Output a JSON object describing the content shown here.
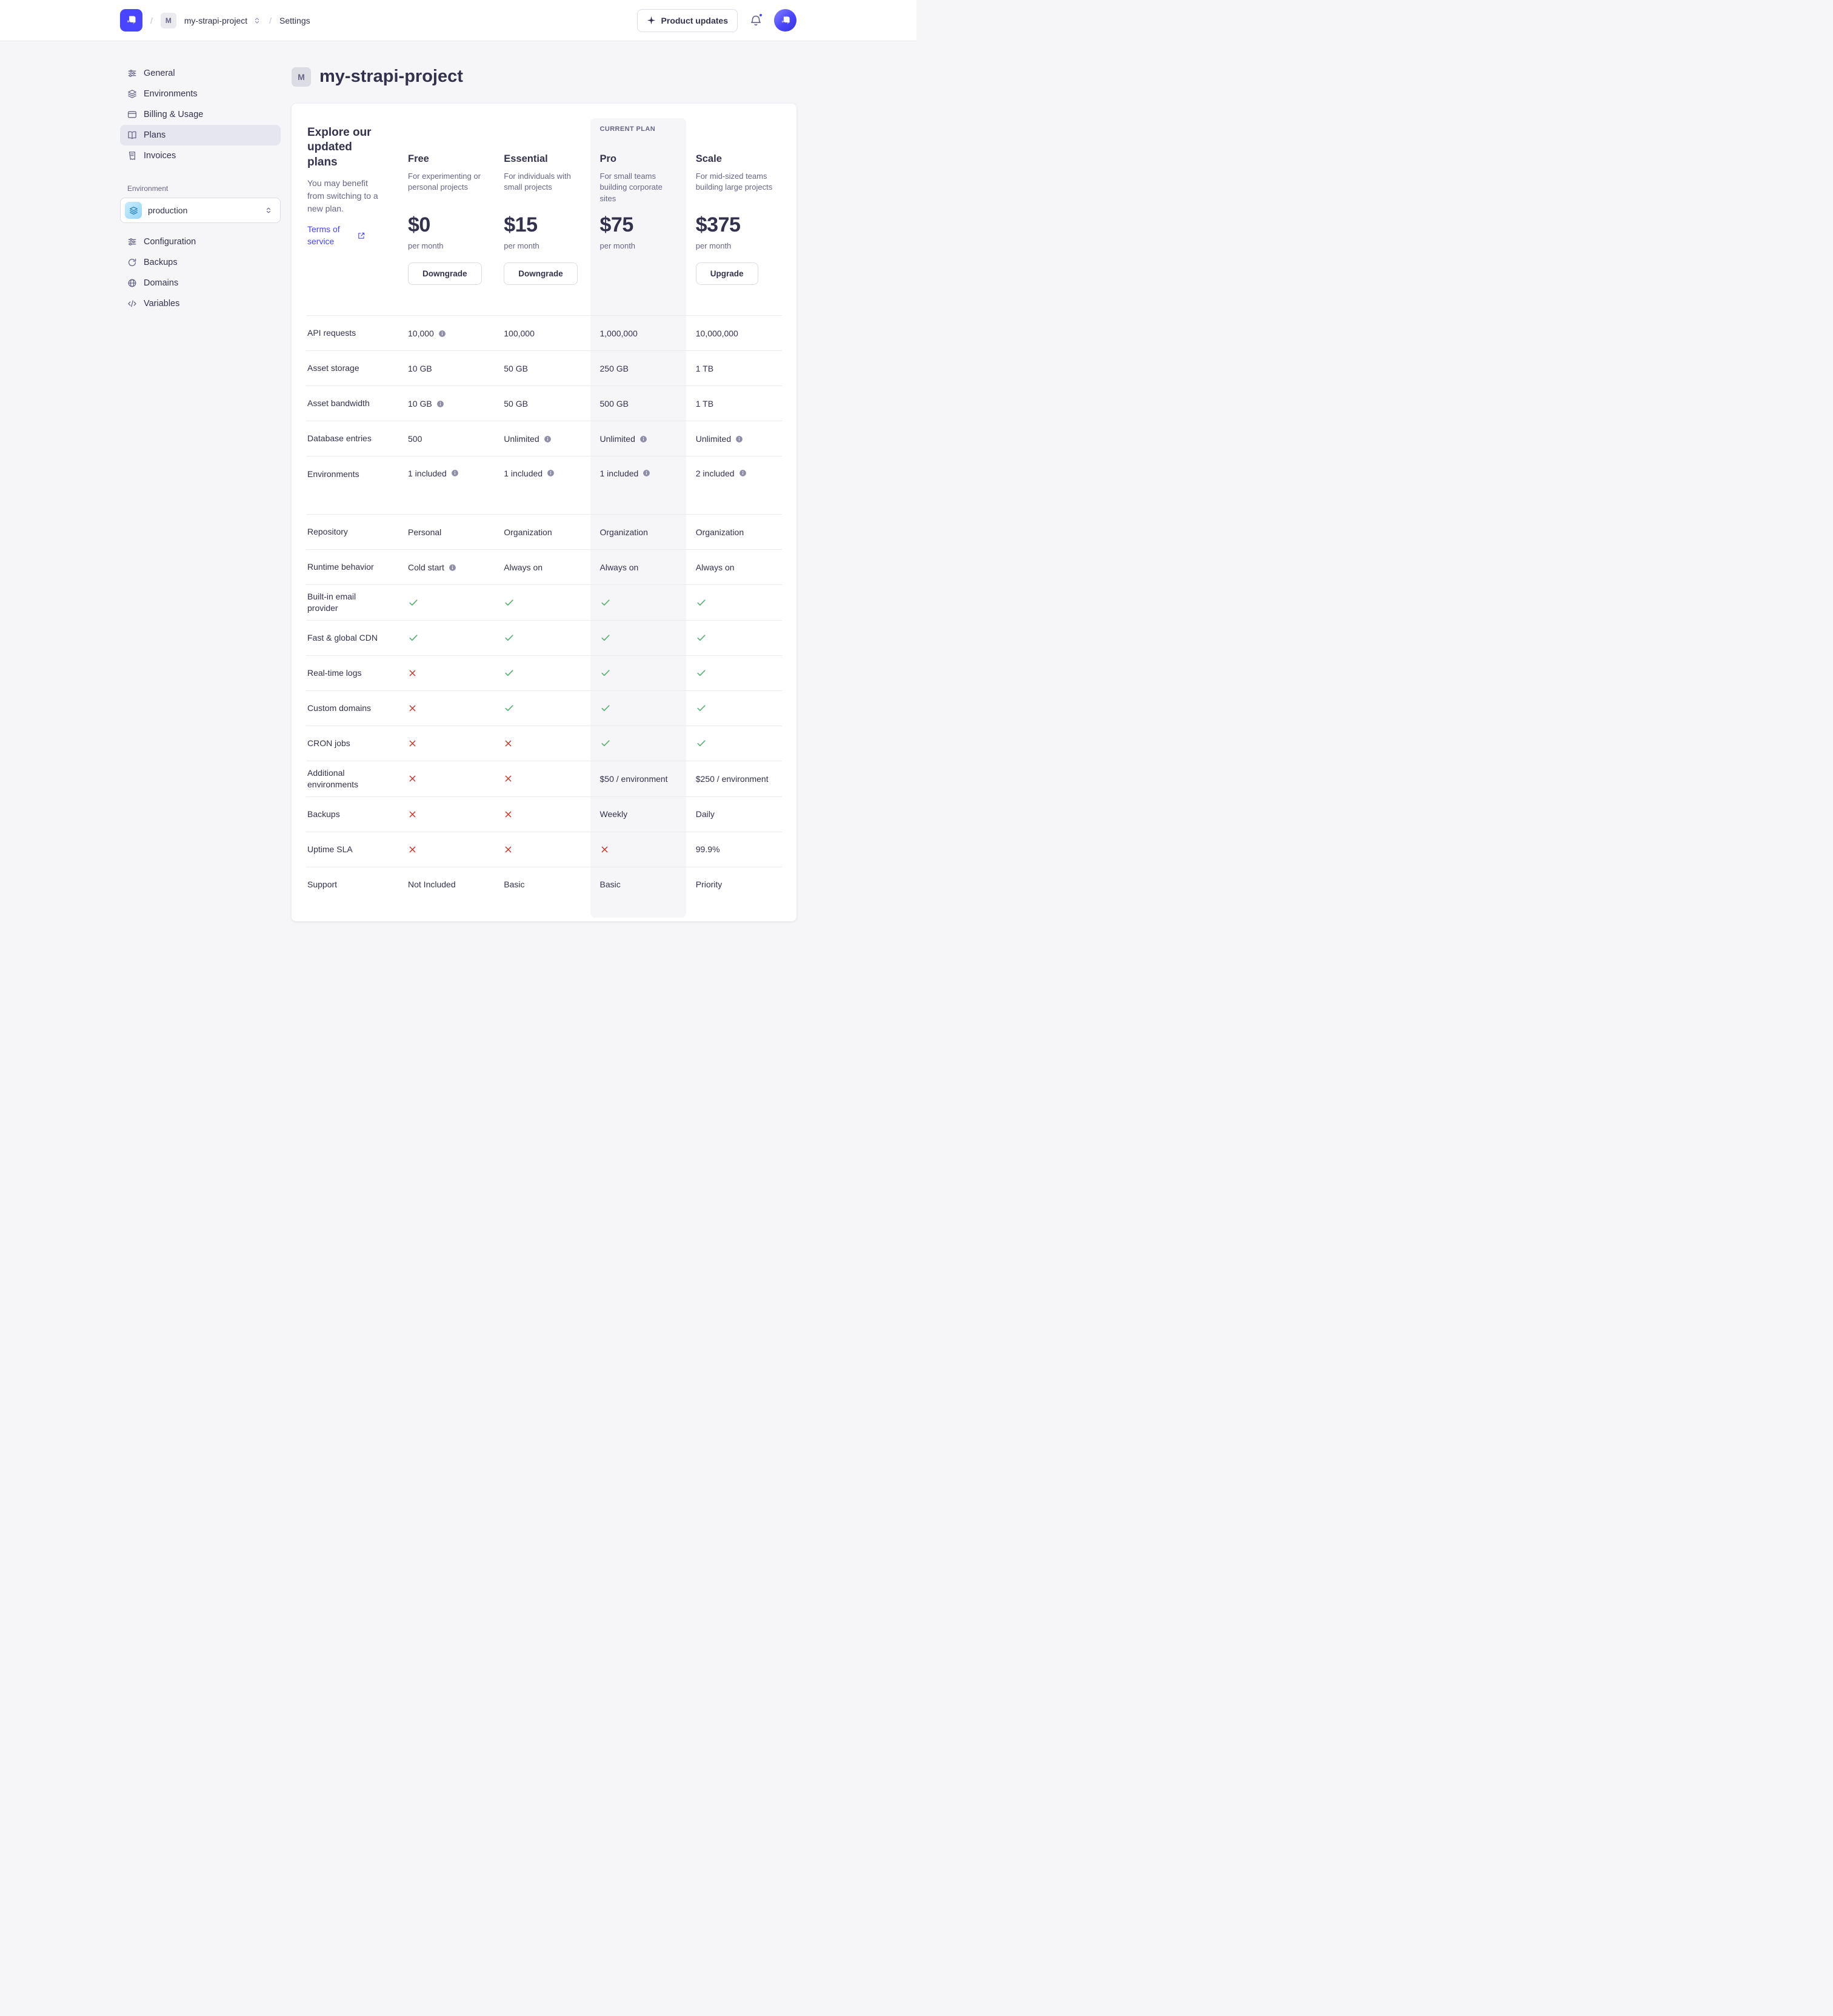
{
  "colors": {
    "accent": "#4945ff",
    "success": "#5cb176",
    "danger": "#d02b20",
    "background": "#f6f6f9"
  },
  "header": {
    "breadcrumb": {
      "project_initial": "M",
      "project_name": "my-strapi-project",
      "settings": "Settings"
    },
    "product_updates": "Product updates"
  },
  "sidebar": {
    "project_nav": [
      {
        "label": "General",
        "icon": "sliders-icon"
      },
      {
        "label": "Environments",
        "icon": "layers-icon"
      },
      {
        "label": "Billing & Usage",
        "icon": "billing-icon"
      },
      {
        "label": "Plans",
        "icon": "plans-icon",
        "active": true
      },
      {
        "label": "Invoices",
        "icon": "invoices-icon"
      }
    ],
    "environment_section": {
      "label": "Environment",
      "selected": "production",
      "nav": [
        {
          "label": "Configuration",
          "icon": "sliders-icon"
        },
        {
          "label": "Backups",
          "icon": "refresh-icon"
        },
        {
          "label": "Domains",
          "icon": "globe-icon"
        },
        {
          "label": "Variables",
          "icon": "code-icon"
        }
      ]
    }
  },
  "page": {
    "project_initial": "M",
    "title": "my-strapi-project"
  },
  "plans_card": {
    "intro": {
      "heading": "Explore our updated plans",
      "body": "You may benefit from switching to a new plan.",
      "terms_link": "Terms of service"
    },
    "current_plan_label": "CURRENT PLAN",
    "columns": [
      {
        "name": "Free",
        "description": "For experimenting or personal projects",
        "price": "$0",
        "period": "per month",
        "button": "Downgrade",
        "current": false
      },
      {
        "name": "Essential",
        "description": "For individuals with small projects",
        "price": "$15",
        "period": "per month",
        "button": "Downgrade",
        "current": false
      },
      {
        "name": "Pro",
        "description": "For small teams building corporate sites",
        "price": "$75",
        "period": "per month",
        "button": null,
        "current": true
      },
      {
        "name": "Scale",
        "description": "For mid-sized teams building large projects",
        "price": "$375",
        "period": "per month",
        "button": "Upgrade",
        "current": false
      }
    ],
    "features": [
      {
        "label": "API requests",
        "cells": [
          {
            "text": "10,000",
            "info": true
          },
          {
            "text": "100,000"
          },
          {
            "text": "1,000,000"
          },
          {
            "text": "10,000,000"
          }
        ]
      },
      {
        "label": "Asset storage",
        "cells": [
          {
            "text": "10 GB"
          },
          {
            "text": "50 GB"
          },
          {
            "text": "250 GB"
          },
          {
            "text": "1 TB"
          }
        ]
      },
      {
        "label": "Asset bandwidth",
        "cells": [
          {
            "text": "10 GB",
            "info": true
          },
          {
            "text": "50 GB"
          },
          {
            "text": "500 GB"
          },
          {
            "text": "1 TB"
          }
        ]
      },
      {
        "label": "Database entries",
        "cells": [
          {
            "text": "500"
          },
          {
            "text": "Unlimited",
            "info": true
          },
          {
            "text": "Unlimited",
            "info": true
          },
          {
            "text": "Unlimited",
            "info": true
          }
        ]
      },
      {
        "label": "Environments",
        "tall": true,
        "cells": [
          {
            "text": "1 included",
            "info": true
          },
          {
            "text": "1 included",
            "info": true
          },
          {
            "text": "1 included",
            "info": true
          },
          {
            "text": "2 included",
            "info": true
          }
        ]
      },
      {
        "label": "Repository",
        "cells": [
          {
            "text": "Personal"
          },
          {
            "text": "Organization"
          },
          {
            "text": "Organization"
          },
          {
            "text": "Organization"
          }
        ]
      },
      {
        "label": "Runtime behavior",
        "cells": [
          {
            "text": "Cold start",
            "info": true
          },
          {
            "text": "Always on"
          },
          {
            "text": "Always on"
          },
          {
            "text": "Always on"
          }
        ]
      },
      {
        "label": "Built-in email provider",
        "cells": [
          {
            "mark": "check"
          },
          {
            "mark": "check"
          },
          {
            "mark": "check"
          },
          {
            "mark": "check"
          }
        ]
      },
      {
        "label": "Fast & global CDN",
        "cells": [
          {
            "mark": "check"
          },
          {
            "mark": "check"
          },
          {
            "mark": "check"
          },
          {
            "mark": "check"
          }
        ]
      },
      {
        "label": "Real-time logs",
        "cells": [
          {
            "mark": "cross"
          },
          {
            "mark": "check"
          },
          {
            "mark": "check"
          },
          {
            "mark": "check"
          }
        ]
      },
      {
        "label": "Custom domains",
        "cells": [
          {
            "mark": "cross"
          },
          {
            "mark": "check"
          },
          {
            "mark": "check"
          },
          {
            "mark": "check"
          }
        ]
      },
      {
        "label": "CRON jobs",
        "cells": [
          {
            "mark": "cross"
          },
          {
            "mark": "cross"
          },
          {
            "mark": "check"
          },
          {
            "mark": "check"
          }
        ]
      },
      {
        "label": "Additional environments",
        "cells": [
          {
            "mark": "cross"
          },
          {
            "mark": "cross"
          },
          {
            "text": "$50 / environment"
          },
          {
            "text": "$250 / environment"
          }
        ]
      },
      {
        "label": "Backups",
        "cells": [
          {
            "mark": "cross"
          },
          {
            "mark": "cross"
          },
          {
            "text": "Weekly"
          },
          {
            "text": "Daily"
          }
        ]
      },
      {
        "label": "Uptime SLA",
        "cells": [
          {
            "mark": "cross"
          },
          {
            "mark": "cross"
          },
          {
            "mark": "cross"
          },
          {
            "text": "99.9%"
          }
        ]
      },
      {
        "label": "Support",
        "cells": [
          {
            "text": "Not Included"
          },
          {
            "text": "Basic"
          },
          {
            "text": "Basic"
          },
          {
            "text": "Priority"
          }
        ]
      }
    ]
  }
}
